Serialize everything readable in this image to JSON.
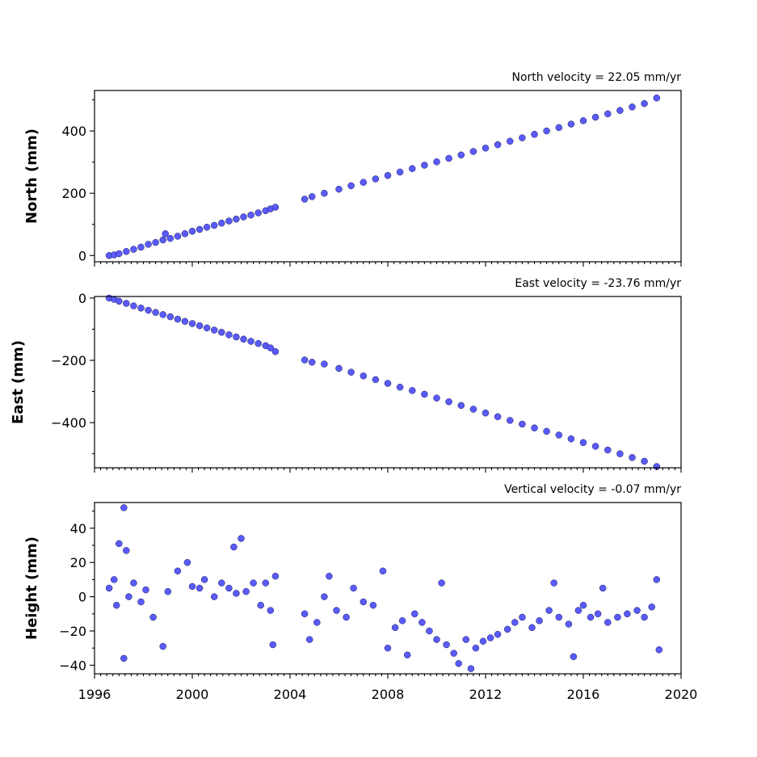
{
  "chart_data": [
    {
      "type": "scatter",
      "title": "North velocity = 22.05 mm/yr",
      "ylabel": "North (mm)",
      "xlim": [
        1996,
        2020
      ],
      "ylim": [
        -20,
        530
      ],
      "yticks": [
        0,
        200,
        400
      ],
      "ytick_labels": [
        "0",
        "200",
        "400"
      ],
      "xtick_labels_shown": false,
      "marker_color": "#5a5aff",
      "series": [
        {
          "values": [
            [
              1996.6,
              0
            ],
            [
              1996.8,
              2
            ],
            [
              1997.0,
              6
            ],
            [
              1997.3,
              13
            ],
            [
              1997.6,
              20
            ],
            [
              1997.9,
              27
            ],
            [
              1998.2,
              36
            ],
            [
              1998.5,
              42
            ],
            [
              1998.8,
              50
            ],
            [
              1998.9,
              70
            ],
            [
              1999.1,
              55
            ],
            [
              1999.4,
              62
            ],
            [
              1999.7,
              70
            ],
            [
              2000.0,
              78
            ],
            [
              2000.3,
              84
            ],
            [
              2000.6,
              91
            ],
            [
              2000.9,
              97
            ],
            [
              2001.2,
              104
            ],
            [
              2001.5,
              111
            ],
            [
              2001.8,
              117
            ],
            [
              2002.1,
              124
            ],
            [
              2002.4,
              130
            ],
            [
              2002.7,
              137
            ],
            [
              2003.0,
              144
            ],
            [
              2003.2,
              150
            ],
            [
              2003.4,
              155
            ],
            [
              2004.6,
              181
            ],
            [
              2004.9,
              189
            ],
            [
              2005.4,
              200
            ],
            [
              2006.0,
              213
            ],
            [
              2006.5,
              224
            ],
            [
              2007.0,
              235
            ],
            [
              2007.5,
              246
            ],
            [
              2008.0,
              257
            ],
            [
              2008.5,
              268
            ],
            [
              2009.0,
              279
            ],
            [
              2009.5,
              290
            ],
            [
              2010.0,
              301
            ],
            [
              2010.5,
              312
            ],
            [
              2011.0,
              323
            ],
            [
              2011.5,
              334
            ],
            [
              2012.0,
              345
            ],
            [
              2012.5,
              356
            ],
            [
              2013.0,
              367
            ],
            [
              2013.5,
              378
            ],
            [
              2014.0,
              389
            ],
            [
              2014.5,
              400
            ],
            [
              2015.0,
              411
            ],
            [
              2015.5,
              422
            ],
            [
              2016.0,
              433
            ],
            [
              2016.5,
              444
            ],
            [
              2017.0,
              455
            ],
            [
              2017.5,
              466
            ],
            [
              2018.0,
              477
            ],
            [
              2018.5,
              488
            ],
            [
              2019.0,
              506
            ]
          ]
        }
      ]
    },
    {
      "type": "scatter",
      "title": "East velocity = -23.76 mm/yr",
      "ylabel": "East (mm)",
      "xlim": [
        1996,
        2020
      ],
      "ylim": [
        -545,
        5
      ],
      "yticks": [
        0,
        -200,
        -400
      ],
      "ytick_labels": [
        "0",
        "−200",
        "−400"
      ],
      "xtick_labels_shown": false,
      "marker_color": "#5a5aff",
      "series": [
        {
          "values": [
            [
              1996.6,
              0
            ],
            [
              1996.8,
              -4
            ],
            [
              1997.0,
              -10
            ],
            [
              1997.3,
              -17
            ],
            [
              1997.6,
              -25
            ],
            [
              1997.9,
              -32
            ],
            [
              1998.2,
              -39
            ],
            [
              1998.5,
              -46
            ],
            [
              1998.8,
              -53
            ],
            [
              1999.1,
              -60
            ],
            [
              1999.4,
              -68
            ],
            [
              1999.7,
              -75
            ],
            [
              2000.0,
              -82
            ],
            [
              2000.3,
              -89
            ],
            [
              2000.6,
              -96
            ],
            [
              2000.9,
              -103
            ],
            [
              2001.2,
              -110
            ],
            [
              2001.5,
              -118
            ],
            [
              2001.8,
              -125
            ],
            [
              2002.1,
              -132
            ],
            [
              2002.4,
              -139
            ],
            [
              2002.7,
              -146
            ],
            [
              2003.0,
              -153
            ],
            [
              2003.2,
              -160
            ],
            [
              2003.4,
              -172
            ],
            [
              2004.6,
              -199
            ],
            [
              2004.9,
              -206
            ],
            [
              2005.4,
              -212
            ],
            [
              2006.0,
              -226
            ],
            [
              2006.5,
              -238
            ],
            [
              2007.0,
              -250
            ],
            [
              2007.5,
              -262
            ],
            [
              2008.0,
              -274
            ],
            [
              2008.5,
              -286
            ],
            [
              2009.0,
              -297
            ],
            [
              2009.5,
              -309
            ],
            [
              2010.0,
              -321
            ],
            [
              2010.5,
              -333
            ],
            [
              2011.0,
              -345
            ],
            [
              2011.5,
              -357
            ],
            [
              2012.0,
              -369
            ],
            [
              2012.5,
              -381
            ],
            [
              2013.0,
              -393
            ],
            [
              2013.5,
              -405
            ],
            [
              2014.0,
              -417
            ],
            [
              2014.5,
              -428
            ],
            [
              2015.0,
              -440
            ],
            [
              2015.5,
              -452
            ],
            [
              2016.0,
              -464
            ],
            [
              2016.5,
              -476
            ],
            [
              2017.0,
              -488
            ],
            [
              2017.5,
              -500
            ],
            [
              2018.0,
              -512
            ],
            [
              2018.5,
              -524
            ],
            [
              2019.0,
              -541
            ]
          ]
        }
      ]
    },
    {
      "type": "scatter",
      "title": "Vertical velocity = -0.07 mm/yr",
      "ylabel": "Height (mm)",
      "xlim": [
        1996,
        2020
      ],
      "ylim": [
        -45,
        55
      ],
      "yticks": [
        40,
        20,
        0,
        -20,
        -40
      ],
      "ytick_labels": [
        "40",
        "20",
        "0",
        "−20",
        "−40"
      ],
      "xticks": [
        1996,
        2000,
        2004,
        2008,
        2012,
        2016,
        2020
      ],
      "xtick_labels": [
        "1996",
        "2000",
        "2004",
        "2008",
        "2012",
        "2016",
        "2020"
      ],
      "marker_color": "#5a5aff",
      "series": [
        {
          "values": [
            [
              1996.6,
              5
            ],
            [
              1996.8,
              10
            ],
            [
              1996.9,
              -5
            ],
            [
              1997.0,
              31
            ],
            [
              1997.2,
              52
            ],
            [
              1997.2,
              -36
            ],
            [
              1997.3,
              27
            ],
            [
              1997.4,
              0
            ],
            [
              1997.6,
              8
            ],
            [
              1997.9,
              -3
            ],
            [
              1998.1,
              4
            ],
            [
              1998.4,
              -12
            ],
            [
              1998.8,
              -29
            ],
            [
              1999.0,
              3
            ],
            [
              1999.4,
              15
            ],
            [
              1999.8,
              20
            ],
            [
              2000.0,
              6
            ],
            [
              2000.3,
              5
            ],
            [
              2000.5,
              10
            ],
            [
              2000.9,
              0
            ],
            [
              2001.2,
              8
            ],
            [
              2001.5,
              5
            ],
            [
              2001.7,
              29
            ],
            [
              2001.8,
              2
            ],
            [
              2002.0,
              34
            ],
            [
              2002.2,
              3
            ],
            [
              2002.5,
              8
            ],
            [
              2002.8,
              -5
            ],
            [
              2003.0,
              8
            ],
            [
              2003.2,
              -8
            ],
            [
              2003.3,
              -28
            ],
            [
              2003.4,
              12
            ],
            [
              2004.6,
              -10
            ],
            [
              2004.8,
              -25
            ],
            [
              2005.1,
              -15
            ],
            [
              2005.4,
              0
            ],
            [
              2005.6,
              12
            ],
            [
              2005.9,
              -8
            ],
            [
              2006.3,
              -12
            ],
            [
              2006.6,
              5
            ],
            [
              2007.0,
              -3
            ],
            [
              2007.4,
              -5
            ],
            [
              2007.8,
              15
            ],
            [
              2008.0,
              -30
            ],
            [
              2008.3,
              -18
            ],
            [
              2008.6,
              -14
            ],
            [
              2008.8,
              -34
            ],
            [
              2009.1,
              -10
            ],
            [
              2009.4,
              -15
            ],
            [
              2009.7,
              -20
            ],
            [
              2010.0,
              -25
            ],
            [
              2010.2,
              8
            ],
            [
              2010.4,
              -28
            ],
            [
              2010.7,
              -33
            ],
            [
              2010.9,
              -39
            ],
            [
              2011.2,
              -25
            ],
            [
              2011.4,
              -42
            ],
            [
              2011.6,
              -30
            ],
            [
              2011.9,
              -26
            ],
            [
              2012.2,
              -24
            ],
            [
              2012.5,
              -22
            ],
            [
              2012.9,
              -19
            ],
            [
              2013.2,
              -15
            ],
            [
              2013.5,
              -12
            ],
            [
              2013.9,
              -18
            ],
            [
              2014.2,
              -14
            ],
            [
              2014.6,
              -8
            ],
            [
              2014.8,
              8
            ],
            [
              2015.0,
              -12
            ],
            [
              2015.4,
              -16
            ],
            [
              2015.6,
              -35
            ],
            [
              2015.8,
              -8
            ],
            [
              2016.0,
              -5
            ],
            [
              2016.3,
              -12
            ],
            [
              2016.6,
              -10
            ],
            [
              2016.8,
              5
            ],
            [
              2017.0,
              -15
            ],
            [
              2017.4,
              -12
            ],
            [
              2017.8,
              -10
            ],
            [
              2018.2,
              -8
            ],
            [
              2018.5,
              -12
            ],
            [
              2018.8,
              -6
            ],
            [
              2019.0,
              10
            ],
            [
              2019.1,
              -31
            ]
          ]
        }
      ]
    }
  ]
}
